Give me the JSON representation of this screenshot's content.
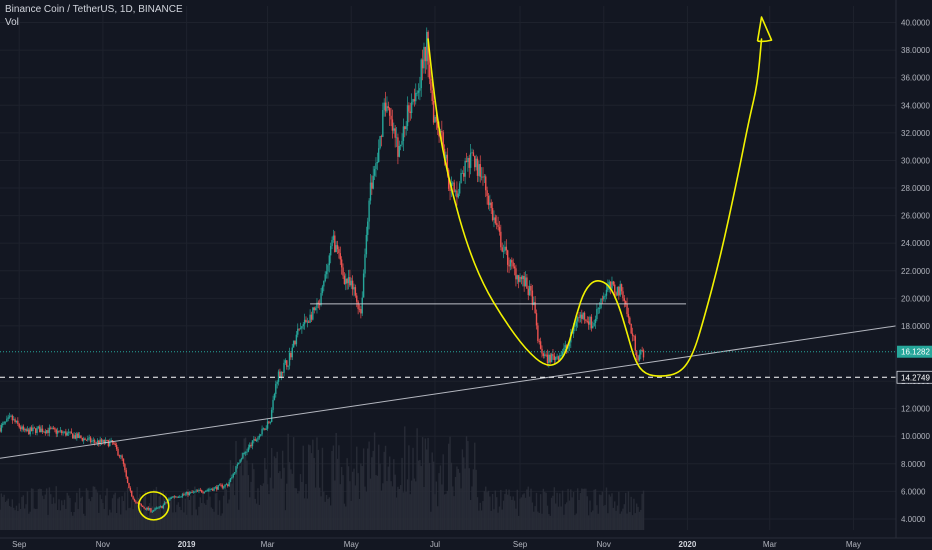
{
  "header": {
    "symbol": "Binance Coin / TetherUS, 1D, BINANCE",
    "volume_label": "Vol"
  },
  "chart_data": {
    "type": "candlestick",
    "ylim": [
      3.2,
      41.2
    ],
    "xlim": [
      "2018-08-18",
      "2020-06-01"
    ],
    "y_ticks": [
      {
        "v": 4,
        "label": "4.0000"
      },
      {
        "v": 6,
        "label": "6.0000"
      },
      {
        "v": 8,
        "label": "8.0000"
      },
      {
        "v": 10,
        "label": "10.0000"
      },
      {
        "v": 12,
        "label": "12.0000"
      },
      {
        "v": 14,
        "label": "14.0000"
      },
      {
        "v": 18,
        "label": "18.0000"
      },
      {
        "v": 20,
        "label": "20.0000"
      },
      {
        "v": 22,
        "label": "22.0000"
      },
      {
        "v": 24,
        "label": "24.0000"
      },
      {
        "v": 26,
        "label": "26.0000"
      },
      {
        "v": 28,
        "label": "28.0000"
      },
      {
        "v": 30,
        "label": "30.0000"
      },
      {
        "v": 32,
        "label": "32.0000"
      },
      {
        "v": 34,
        "label": "34.0000"
      },
      {
        "v": 36,
        "label": "36.0000"
      },
      {
        "v": 38,
        "label": "38.0000"
      },
      {
        "v": 40,
        "label": "40.0000"
      }
    ],
    "x_ticks": [
      {
        "date": "2018-09-01",
        "label": "Sep",
        "bold": false
      },
      {
        "date": "2018-11-01",
        "label": "Nov",
        "bold": false
      },
      {
        "date": "2019-01-01",
        "label": "2019",
        "bold": true
      },
      {
        "date": "2019-03-01",
        "label": "Mar",
        "bold": false
      },
      {
        "date": "2019-05-01",
        "label": "May",
        "bold": false
      },
      {
        "date": "2019-07-01",
        "label": "Jul",
        "bold": false
      },
      {
        "date": "2019-09-01",
        "label": "Sep",
        "bold": false
      },
      {
        "date": "2019-11-01",
        "label": "Nov",
        "bold": false
      },
      {
        "date": "2020-01-01",
        "label": "2020",
        "bold": true
      },
      {
        "date": "2020-03-01",
        "label": "Mar",
        "bold": false
      },
      {
        "date": "2020-05-01",
        "label": "May",
        "bold": false
      }
    ],
    "price_path": [
      [
        "2018-08-18",
        10.6
      ],
      [
        "2018-08-26",
        11.3
      ],
      [
        "2018-09-05",
        10.3
      ],
      [
        "2018-09-15",
        10.5
      ],
      [
        "2018-09-25",
        10.4
      ],
      [
        "2018-10-05",
        10.2
      ],
      [
        "2018-10-15",
        9.9
      ],
      [
        "2018-10-25",
        9.6
      ],
      [
        "2018-11-08",
        9.5
      ],
      [
        "2018-11-15",
        8.3
      ],
      [
        "2018-11-20",
        6.1
      ],
      [
        "2018-11-25",
        5.2
      ],
      [
        "2018-12-01",
        4.8
      ],
      [
        "2018-12-07",
        4.6
      ],
      [
        "2018-12-14",
        4.9
      ],
      [
        "2018-12-21",
        5.6
      ],
      [
        "2018-12-31",
        5.8
      ],
      [
        "2019-01-10",
        6.0
      ],
      [
        "2019-01-20",
        6.2
      ],
      [
        "2019-01-31",
        6.5
      ],
      [
        "2019-02-10",
        8.5
      ],
      [
        "2019-02-18",
        9.5
      ],
      [
        "2019-02-25",
        10.3
      ],
      [
        "2019-03-03",
        11.3
      ],
      [
        "2019-03-08",
        14.3
      ],
      [
        "2019-03-16",
        15.5
      ],
      [
        "2019-03-23",
        17.5
      ],
      [
        "2019-04-02",
        18.8
      ],
      [
        "2019-04-08",
        19.5
      ],
      [
        "2019-04-14",
        22.5
      ],
      [
        "2019-04-18",
        24.3
      ],
      [
        "2019-04-26",
        21.5
      ],
      [
        "2019-05-03",
        20.5
      ],
      [
        "2019-05-08",
        19.0
      ],
      [
        "2019-05-14",
        27.5
      ],
      [
        "2019-05-21",
        30.5
      ],
      [
        "2019-05-25",
        34.5
      ],
      [
        "2019-05-30",
        32.5
      ],
      [
        "2019-06-05",
        30.5
      ],
      [
        "2019-06-12",
        34.0
      ],
      [
        "2019-06-20",
        36.0
      ],
      [
        "2019-06-25",
        38.5
      ],
      [
        "2019-06-30",
        33.5
      ],
      [
        "2019-07-06",
        32.0
      ],
      [
        "2019-07-11",
        28.5
      ],
      [
        "2019-07-16",
        27.5
      ],
      [
        "2019-07-23",
        29.5
      ],
      [
        "2019-07-29",
        30.0
      ],
      [
        "2019-08-05",
        28.8
      ],
      [
        "2019-08-12",
        26.0
      ],
      [
        "2019-08-20",
        23.5
      ],
      [
        "2019-08-26",
        22.2
      ],
      [
        "2019-09-01",
        21.5
      ],
      [
        "2019-09-05",
        21.0
      ],
      [
        "2019-09-10",
        20.0
      ],
      [
        "2019-09-15",
        16.5
      ],
      [
        "2019-09-20",
        15.6
      ],
      [
        "2019-09-28",
        15.8
      ],
      [
        "2019-10-06",
        16.5
      ],
      [
        "2019-10-12",
        18.5
      ],
      [
        "2019-10-18",
        18.8
      ],
      [
        "2019-10-24",
        18.0
      ],
      [
        "2019-10-30",
        20.0
      ],
      [
        "2019-11-05",
        20.8
      ],
      [
        "2019-11-10",
        20.6
      ],
      [
        "2019-11-15",
        20.5
      ],
      [
        "2019-11-20",
        18.0
      ],
      [
        "2019-11-26",
        15.8
      ],
      [
        "2019-11-30",
        16.1
      ]
    ],
    "last_price": {
      "value": 16.1282,
      "label": "16.1282",
      "color": "#26a69a"
    },
    "dashed_level": {
      "value": 14.2749,
      "label": "14.2749"
    },
    "resistance": {
      "from": "2019-04-01",
      "to": "2019-12-31",
      "value": 19.6
    },
    "trendline": {
      "from": [
        "2018-08-18",
        8.4
      ],
      "to": [
        "2020-06-01",
        18.0
      ]
    },
    "annotation_path": [
      [
        "2019-06-26",
        38.8
      ],
      [
        "2019-06-30",
        35.0
      ],
      [
        "2019-07-06",
        31.0
      ],
      [
        "2019-07-14",
        27.5
      ],
      [
        "2019-07-24",
        24.0
      ],
      [
        "2019-08-05",
        21.0
      ],
      [
        "2019-08-20",
        18.5
      ],
      [
        "2019-09-05",
        16.3
      ],
      [
        "2019-09-20",
        15.0
      ],
      [
        "2019-10-01",
        15.4
      ],
      [
        "2019-10-07",
        16.8
      ],
      [
        "2019-10-12",
        18.8
      ],
      [
        "2019-10-18",
        20.6
      ],
      [
        "2019-10-26",
        21.4
      ],
      [
        "2019-11-05",
        21.0
      ],
      [
        "2019-11-12",
        19.5
      ],
      [
        "2019-11-18",
        17.5
      ],
      [
        "2019-11-24",
        15.4
      ],
      [
        "2019-12-01",
        14.5
      ],
      [
        "2019-12-13",
        14.3
      ],
      [
        "2019-12-27",
        14.6
      ],
      [
        "2020-01-05",
        15.9
      ],
      [
        "2020-01-13",
        18.5
      ],
      [
        "2020-01-25",
        23.0
      ],
      [
        "2020-02-06",
        28.5
      ],
      [
        "2020-02-15",
        33.0
      ],
      [
        "2020-02-21",
        35.5
      ],
      [
        "2020-02-24",
        38.8
      ]
    ],
    "arrow_tip": [
      "2020-02-24",
      40.4
    ],
    "highlight_circle": {
      "center": [
        "2018-12-08",
        4.95
      ]
    },
    "colors": {
      "background": "#131722",
      "up": "#26a69a",
      "down": "#ef5350",
      "annotation": "#f2f200",
      "grid": "#1e222d",
      "line": "#d1d4dc"
    }
  }
}
